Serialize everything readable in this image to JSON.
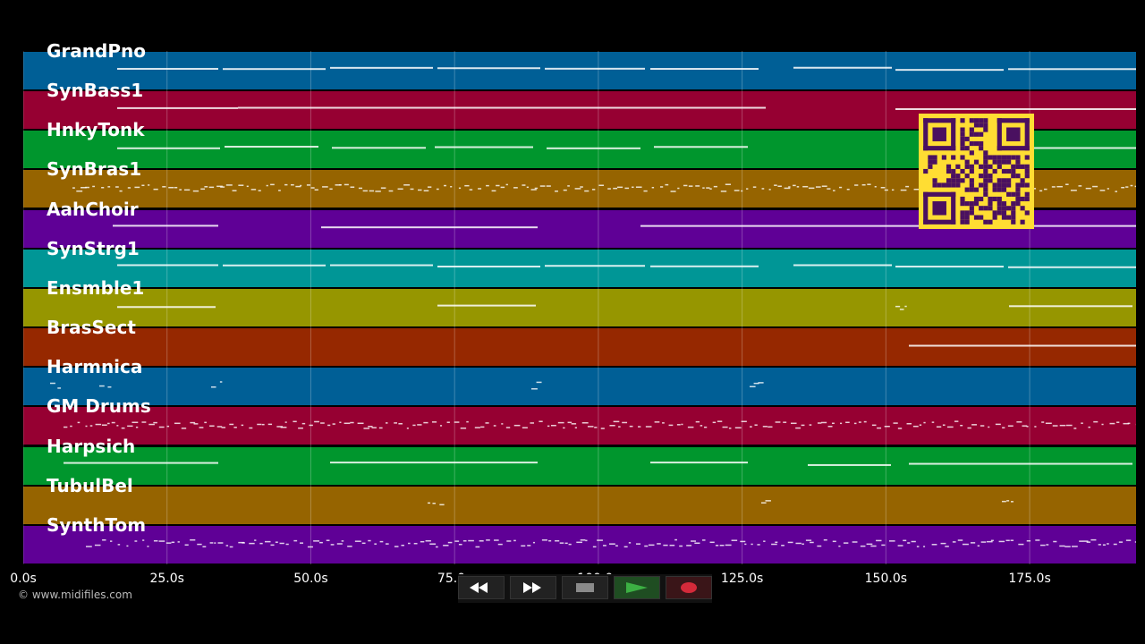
{
  "tracks": [
    {
      "name": "GrandPno",
      "color": "#005f96"
    },
    {
      "name": "SynBass1",
      "color": "#960032"
    },
    {
      "name": "HnkyTonk",
      "color": "#00962d"
    },
    {
      "name": "SynBras1",
      "color": "#966400"
    },
    {
      "name": "AahChoir",
      "color": "#5f0096"
    },
    {
      "name": "SynStrg1",
      "color": "#009696"
    },
    {
      "name": "Ensmble1",
      "color": "#969600"
    },
    {
      "name": "BrasSect",
      "color": "#962800"
    },
    {
      "name": "Harmnica",
      "color": "#005f96"
    },
    {
      "name": "GM Drums",
      "color": "#960032"
    },
    {
      "name": "Harpsich",
      "color": "#00962d"
    },
    {
      "name": "TubulBel",
      "color": "#966400"
    },
    {
      "name": "SynthTom",
      "color": "#5f0096"
    }
  ],
  "timeline": {
    "ticks": [
      "0.0s",
      "25.0s",
      "50.0s",
      "75.0s",
      "100.0s",
      "125.0s",
      "150.0s",
      "175.0s"
    ],
    "tick_seconds": [
      0,
      25,
      50,
      75,
      100,
      125,
      150,
      175
    ],
    "max_seconds": 193.5
  },
  "credit": "© www.midifiles.com",
  "transport": {
    "rewind": "rewind-icon",
    "fast_forward": "fast-forward-icon",
    "stop": "stop-icon",
    "play": "play-icon",
    "record": "record-icon"
  },
  "colors": {
    "qr_bg": "#ffdd33",
    "qr_fg": "#4a1060",
    "play": "#3cb043",
    "record": "#d42a3a"
  }
}
